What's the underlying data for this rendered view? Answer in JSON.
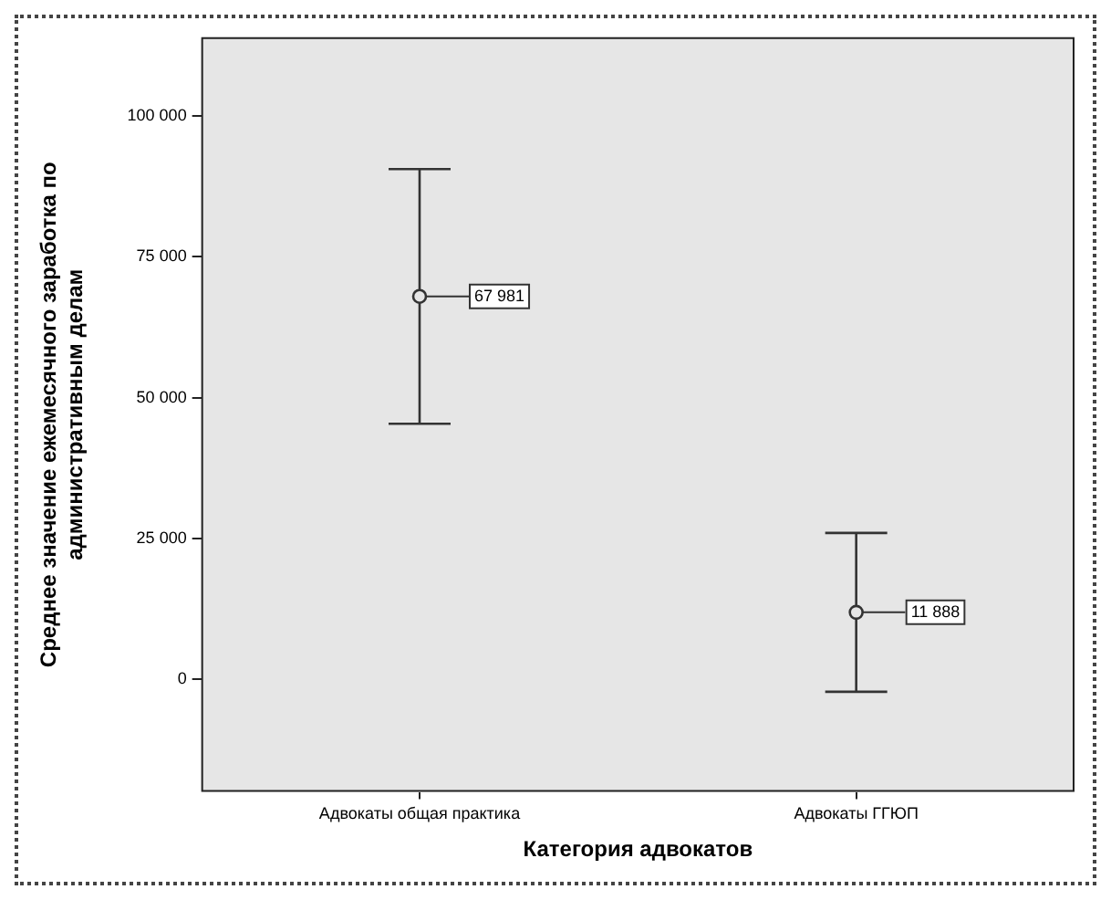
{
  "chart_data": {
    "type": "scatter",
    "xlabel": "Категория адвокатов",
    "ylabel": "Среднее значение ежемесячного заработка по административным делам",
    "categories": [
      "Адвокаты общая практика",
      "Адвокаты ГГЮП"
    ],
    "series": [
      {
        "color": "#333333",
        "values": [
          67981,
          11888
        ],
        "errors": [
          22600,
          14100
        ],
        "value_labels": [
          "67 981",
          "11 888"
        ]
      }
    ],
    "marker": "circle",
    "legend": false,
    "ylim": [
      -20000,
      114000
    ],
    "yticks": [
      {
        "value": 0,
        "label": "0"
      },
      {
        "value": 25000,
        "label": "25 000"
      },
      {
        "value": 50000,
        "label": "50 000"
      },
      {
        "value": 75000,
        "label": "75 000"
      },
      {
        "value": 100000,
        "label": "100 000"
      }
    ]
  }
}
